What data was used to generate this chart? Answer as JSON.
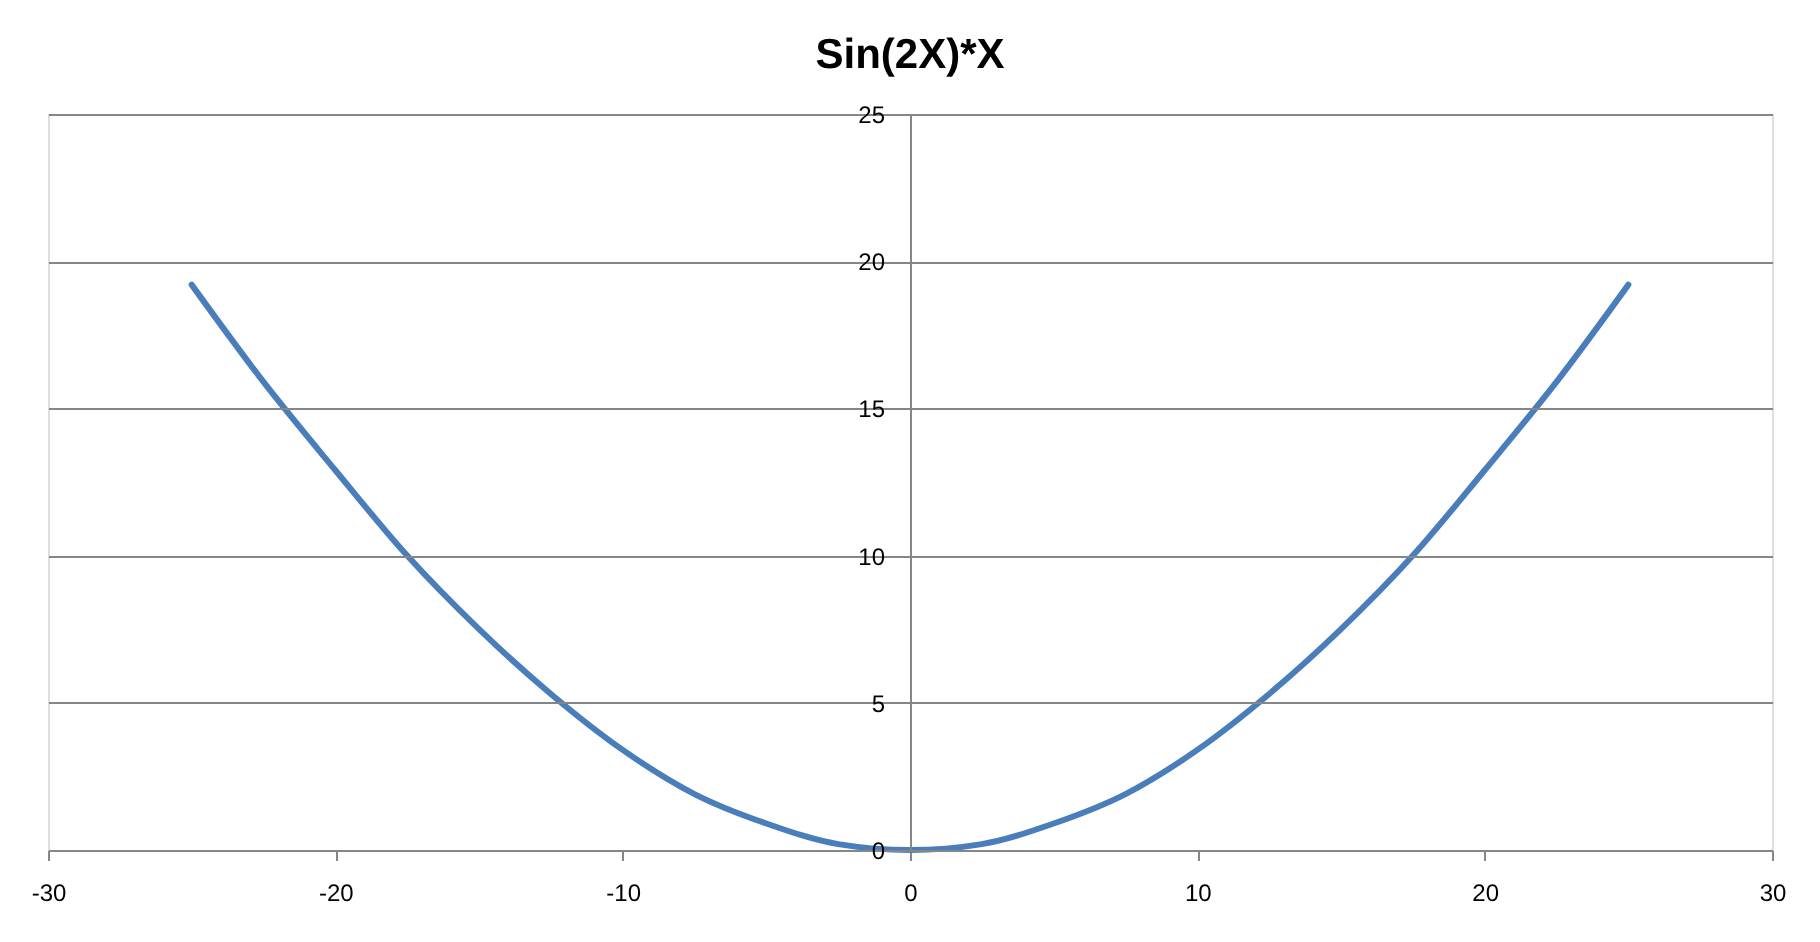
{
  "chart_data": {
    "type": "line",
    "title": "Sin(2X)*X",
    "x": [
      -25,
      -22.5,
      -20,
      -17.5,
      -15,
      -12.5,
      -10,
      -7.5,
      -5,
      -2.5,
      0,
      2.5,
      5,
      7.5,
      10,
      12.5,
      15,
      17.5,
      20,
      22.5,
      25
    ],
    "series": [
      {
        "color": "#4a7ebb",
        "values": [
          19.2,
          15.9,
          12.9,
          10.0,
          7.5,
          5.3,
          3.4,
          1.9,
          0.9,
          0.2,
          0,
          0.2,
          0.9,
          1.9,
          3.4,
          5.3,
          7.5,
          10.0,
          12.9,
          15.9,
          19.2
        ]
      }
    ],
    "xlim": [
      -30,
      30
    ],
    "xticks": [
      -30,
      -20,
      -10,
      0,
      10,
      20,
      30
    ],
    "ylim": [
      0,
      25
    ],
    "yticks": [
      0,
      5,
      10,
      15,
      20,
      25
    ],
    "grid": "y",
    "marker": "none",
    "line_style": "solid"
  }
}
